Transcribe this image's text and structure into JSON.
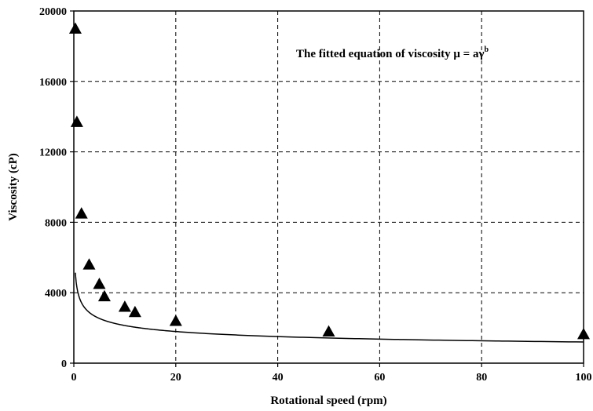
{
  "chart_data": {
    "type": "scatter",
    "xlabel": "Rotational speed (rpm)",
    "ylabel": "Viscosity (cP)",
    "annotation": {
      "prefix": "The fitted equation of viscosity μ = aγ",
      "superscript": "b"
    },
    "xlim": [
      0,
      100
    ],
    "ylim": [
      0,
      20000
    ],
    "xticks": [
      0,
      20,
      40,
      60,
      80,
      100
    ],
    "yticks": [
      0,
      4000,
      8000,
      12000,
      16000,
      20000
    ],
    "grid": "dashed",
    "marker": "triangle",
    "colors": {
      "marker": "#000000",
      "line": "#000000",
      "grid": "#000000"
    },
    "series": [
      {
        "type": "scatter",
        "x": [
          0.3,
          0.6,
          1.5,
          3,
          5,
          6,
          10,
          12,
          20,
          50,
          100
        ],
        "y": [
          19000,
          13700,
          8500,
          5600,
          4500,
          3800,
          3200,
          2900,
          2400,
          1800,
          1650
        ]
      }
    ],
    "fit": {
      "type": "power",
      "a": 3800,
      "b": -0.25,
      "x_range": [
        0.3,
        100
      ]
    }
  }
}
